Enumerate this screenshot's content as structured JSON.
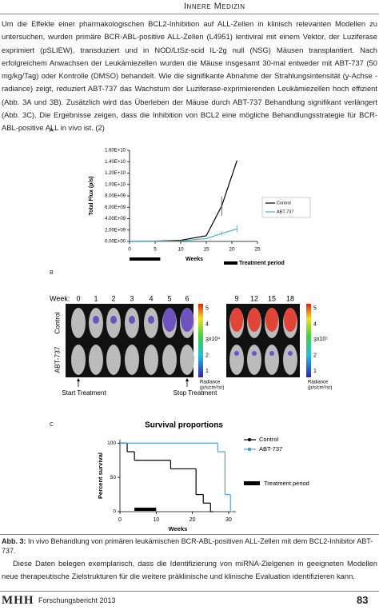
{
  "header": {
    "title": "Innere Medizin"
  },
  "paragraphs": [
    "Um die Effekte einer pharmakologischen BCL2-Inhibition auf ALL-Zellen in klinisch relevanten Modellen zu untersuchen, wurden primäre BCR-ABL-positive ALL-Zellen (L4951) lentiviral mit einem Vektor, der Luziferase exprimiert (pSLIEW), transduziert und in NOD/LtSz-scid IL-2g null (NSG) Mäusen transplantiert. Nach erfolgreichem Anwachsen der Leukämiezellen wurden die Mäuse insgesamt 30-mal entweder mit ABT-737 (50 mg/kg/Tag) oder Kontrolle (DMSO) behandelt. Wie die signifikante Abnahme der Strahlungsintensität (y-Achse - radiance) zeigt, reduziert ABT-737 das Wachstum der Luziferase-exprimierenden Leukämiezellen hoch effizient (Abb. 3A und 3B). Zusätzlich wird das Überleben der Mäuse durch ABT-737 Behandlung signifikant verlängert (Abb. 3C). Die Ergebnisse zeigen, dass die Inhibition von BCL2 eine mögliche Behandlungsstrategie für BCR-ABL-positive ALL in vivo ist. (2)",
    "Diese Daten belegen exemplarisch, dass die Identifizierung von miRNA-Zielgenen in geeigneten Modellen neue therapeutische Zielstrukturen für die weitere präklinische und klinische Evaluation identifizieren kann."
  ],
  "panels": [
    "A",
    "B",
    "C"
  ],
  "caption": {
    "label": "Abb. 3:",
    "text": "In vivo Behandlung von primären leukämischen BCR-ABL-positiven ALL-Zellen mit dem BCL2-Inhibitor ABT-737."
  },
  "chart_data": [
    {
      "type": "line",
      "x_label": "Weeks",
      "y_label": "Total Flux (p/s)",
      "x": [
        0,
        5,
        10,
        15,
        18,
        21
      ],
      "series": [
        {
          "name": "Control",
          "color": "#000000",
          "values": [
            0,
            50000000,
            200000000,
            1000000000,
            6200000000,
            14200000000
          ],
          "errors": [
            null,
            null,
            null,
            null,
            1700000000,
            null
          ]
        },
        {
          "name": "ABT-737",
          "color": "#4bacc6",
          "values": [
            0,
            20000000,
            100000000,
            500000000,
            1400000000,
            2200000000
          ],
          "errors": [
            null,
            null,
            null,
            null,
            400000000,
            600000000
          ]
        }
      ],
      "xlim": [
        0,
        25
      ],
      "xticks": [
        0,
        5,
        10,
        15,
        20,
        25
      ],
      "ylim": [
        0,
        16000000000
      ],
      "yticks": [
        {
          "value": 0,
          "label": "0.00E+00"
        },
        {
          "value": 2000000000,
          "label": "2.00E+09"
        },
        {
          "value": 4000000000,
          "label": "4.00E+09"
        },
        {
          "value": 6000000000,
          "label": "6.00E+09"
        },
        {
          "value": 8000000000,
          "label": "8.00E+09"
        },
        {
          "value": 10000000000,
          "label": "1.00E+10"
        },
        {
          "value": 12000000000,
          "label": "1.20E+10"
        },
        {
          "value": 14000000000,
          "label": "1.40E+10"
        },
        {
          "value": 16000000000,
          "label": "1.60E+10"
        }
      ],
      "treatment_period": [
        0,
        6
      ],
      "treatment_label": "Treatment period"
    },
    {
      "type": "step",
      "title": "Survival proportions",
      "x_label": "Weeks",
      "y_label": "Percent survival",
      "series": [
        {
          "name": "Control",
          "color": "#000000",
          "x": [
            0,
            2,
            4,
            14,
            21,
            23,
            25
          ],
          "values": [
            100,
            87.5,
            75,
            62.5,
            25,
            12.5,
            0
          ]
        },
        {
          "name": "ABT-737",
          "color": "#5b9bd5",
          "x": [
            0,
            27,
            29,
            30.5
          ],
          "values": [
            100,
            87.5,
            25,
            0
          ]
        }
      ],
      "xlim": [
        0,
        32
      ],
      "xticks": [
        0,
        10,
        20,
        30
      ],
      "ylim": [
        0,
        105
      ],
      "yticks": [
        0,
        50,
        100
      ],
      "treatment_period": [
        4,
        10
      ],
      "treatment_label": "Treatment period"
    }
  ],
  "figure_b": {
    "week_label": "Week:",
    "weeks_left": [
      "0",
      "1",
      "2",
      "3",
      "4",
      "5",
      "6"
    ],
    "weeks_right": [
      "9",
      "12",
      "15",
      "18"
    ],
    "rows": [
      "Control",
      "ABT-737"
    ],
    "colorbar_ticks": [
      5,
      4,
      3,
      2,
      1
    ],
    "colorbar_lim": [
      0.6,
      5.3
    ],
    "scale_left": "x10⁴",
    "scale_right": "x10⁵",
    "radiance": [
      "Radiance",
      "(p/s/cm²/sr)"
    ],
    "start": "Start Treatment",
    "stop": "Stop Treatment"
  },
  "footer": {
    "logo": "MHH",
    "text": "Forschungsbericht 2013",
    "page": "83"
  }
}
